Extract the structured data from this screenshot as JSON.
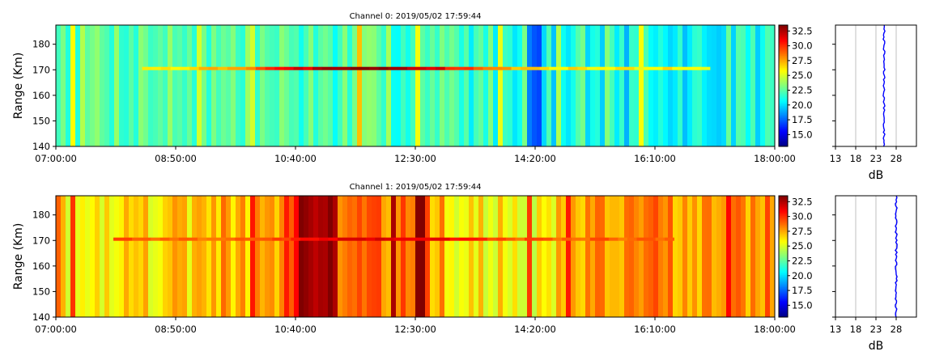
{
  "chart_data": [
    {
      "type": "heatmap",
      "title": "Channel 0: 2019/05/02 17:59:44",
      "ylabel": "Range (Km)",
      "xlabel": "",
      "ylim": [
        140,
        187.5
      ],
      "x_ticks": [
        "07:00:00",
        "08:50:00",
        "10:40:00",
        "12:30:00",
        "14:20:00",
        "16:10:00",
        "18:00:00"
      ],
      "y_ticks": [
        140,
        150,
        160,
        170,
        180
      ],
      "colorbar": {
        "ticks": [
          "15.0",
          "17.5",
          "20.0",
          "22.5",
          "25.0",
          "27.5",
          "30.0",
          "32.5"
        ],
        "range": [
          13,
          33.5
        ],
        "colormap": "jet"
      },
      "noise_profile": {
        "xlabel": "dB",
        "x_ticks": [
          "13",
          "18",
          "23",
          "28"
        ],
        "xlim": [
          13,
          33
        ],
        "value_db": 25,
        "color": "#0000ff"
      }
    },
    {
      "type": "heatmap",
      "title": "Channel 1: 2019/05/02 17:59:44",
      "ylabel": "Range (Km)",
      "xlabel": "",
      "ylim": [
        140,
        187.5
      ],
      "x_ticks": [
        "07:00:00",
        "08:50:00",
        "10:40:00",
        "12:30:00",
        "14:20:00",
        "16:10:00",
        "18:00:00"
      ],
      "y_ticks": [
        140,
        150,
        160,
        170,
        180
      ],
      "colorbar": {
        "ticks": [
          "15.0",
          "17.5",
          "20.0",
          "22.5",
          "25.0",
          "27.5",
          "30.0",
          "32.5"
        ],
        "range": [
          13,
          33.5
        ],
        "colormap": "jet"
      },
      "noise_profile": {
        "xlabel": "dB",
        "x_ticks": [
          "13",
          "18",
          "23",
          "28"
        ],
        "xlim": [
          13,
          33
        ],
        "value_db": 28,
        "color": "#0000ff"
      }
    }
  ]
}
